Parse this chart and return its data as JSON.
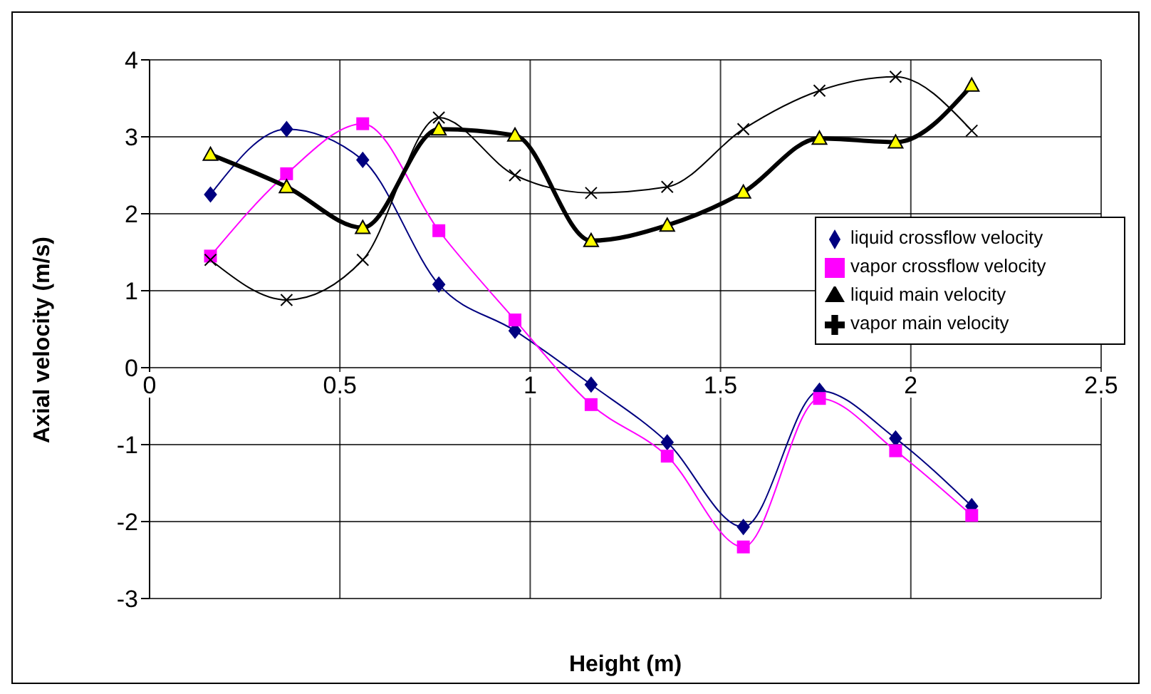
{
  "chart_data": {
    "type": "line",
    "xlabel": "Height (m)",
    "ylabel": "Axial velocity (m/s)",
    "x": [
      0.16,
      0.36,
      0.56,
      0.76,
      0.96,
      1.16,
      1.36,
      1.56,
      1.76,
      1.96,
      2.16
    ],
    "xlim": [
      0,
      2.5
    ],
    "xticks": [
      0,
      0.5,
      1,
      1.5,
      2,
      2.5
    ],
    "ylim": [
      -3,
      4
    ],
    "yticks": [
      -3,
      -2,
      -1,
      0,
      1,
      2,
      3,
      4
    ],
    "grid": true,
    "legend": "right",
    "series": [
      {
        "name": "liquid crossflow  velocity",
        "color": "#000080",
        "marker": "diamond",
        "values": [
          2.25,
          3.1,
          2.7,
          1.08,
          0.48,
          -0.22,
          -0.97,
          -2.07,
          -0.3,
          -0.92,
          -1.8
        ]
      },
      {
        "name": "vapor crossflow  velocity",
        "color": "#ff00ff",
        "marker": "square",
        "values": [
          1.45,
          2.52,
          3.17,
          1.78,
          0.62,
          -0.48,
          -1.15,
          -2.33,
          -0.4,
          -1.08,
          -1.92
        ]
      },
      {
        "name": "liquid main velocity",
        "color": "#000000",
        "marker": "triangle",
        "values": [
          2.77,
          2.35,
          1.82,
          3.1,
          3.02,
          1.65,
          1.85,
          2.28,
          2.98,
          2.93,
          3.67
        ]
      },
      {
        "name": "vapor main velocity",
        "color": "#000000",
        "marker": "cross",
        "values": [
          1.4,
          0.88,
          1.4,
          3.25,
          2.5,
          2.27,
          2.35,
          3.1,
          3.6,
          3.78,
          3.08
        ]
      }
    ]
  }
}
